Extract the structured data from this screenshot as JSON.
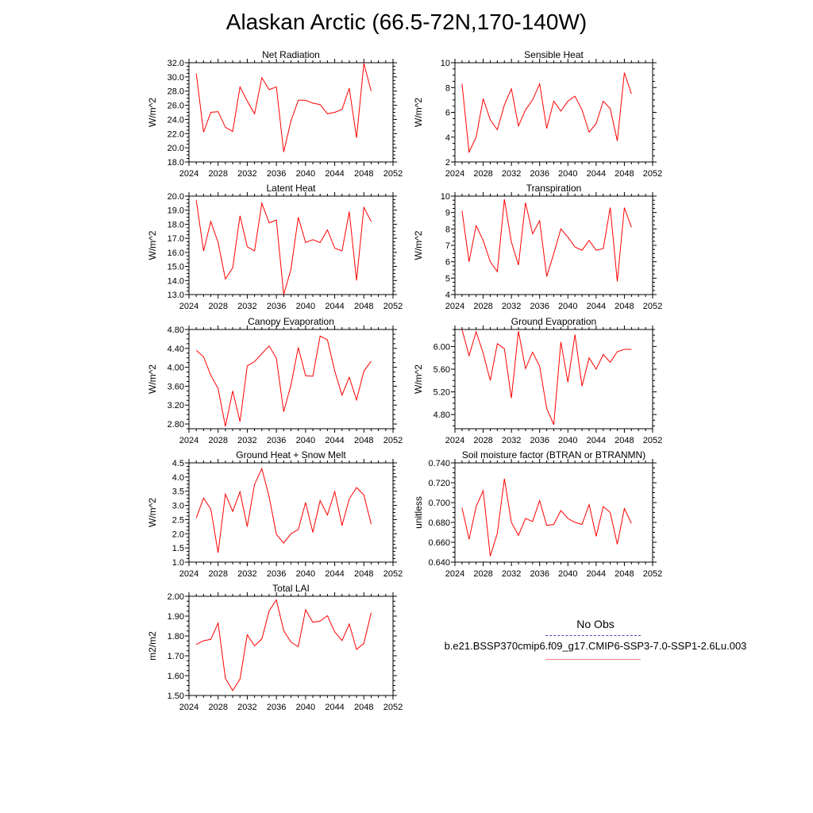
{
  "title": "Alaskan Arctic (66.5-72N,170-140W)",
  "legend": {
    "obs_label": "No Obs",
    "case_label": "b.e21.BSSP370cmip6.f09_g17.CMIP6-SSP3-7.0-SSP1-2.6Lu.003",
    "line_color": "#ff0000"
  },
  "chart_data": [
    {
      "type": "line",
      "title": "Net Radiation",
      "ylabel": "W/m^2",
      "xlim": [
        2024,
        2052
      ],
      "ylim": [
        18.0,
        32.0
      ],
      "xticks": [
        "2024",
        "2028",
        "2032",
        "2036",
        "2040",
        "2044",
        "2048",
        "2052"
      ],
      "yticks": [
        "18.0",
        "20.0",
        "22.0",
        "24.0",
        "26.0",
        "28.0",
        "30.0",
        "32.0"
      ],
      "x": [
        2025,
        2026,
        2027,
        2028,
        2029,
        2030,
        2031,
        2032,
        2033,
        2034,
        2035,
        2036,
        2037,
        2038,
        2039,
        2040,
        2041,
        2042,
        2043,
        2044,
        2045,
        2046,
        2047,
        2048,
        2049
      ],
      "values": [
        30.5,
        22.2,
        25.0,
        25.1,
        22.9,
        22.3,
        28.6,
        26.6,
        24.8,
        29.9,
        28.2,
        28.6,
        19.4,
        23.8,
        26.7,
        26.7,
        26.3,
        26.1,
        24.8,
        25.0,
        25.4,
        28.4,
        21.4,
        31.9,
        28.0
      ]
    },
    {
      "type": "line",
      "title": "Sensible Heat",
      "ylabel": "W/m^2",
      "xlim": [
        2024,
        2052
      ],
      "ylim": [
        2,
        10
      ],
      "xticks": [
        "2024",
        "2028",
        "2032",
        "2036",
        "2040",
        "2044",
        "2048",
        "2052"
      ],
      "yticks": [
        "2",
        "4",
        "6",
        "8",
        "10"
      ],
      "x": [
        2025,
        2026,
        2027,
        2028,
        2029,
        2030,
        2031,
        2032,
        2033,
        2034,
        2035,
        2036,
        2037,
        2038,
        2039,
        2040,
        2041,
        2042,
        2043,
        2044,
        2045,
        2046,
        2047,
        2048,
        2049
      ],
      "values": [
        8.3,
        2.8,
        4.0,
        7.1,
        5.4,
        4.6,
        6.6,
        7.9,
        4.9,
        6.2,
        7.0,
        8.3,
        4.7,
        6.9,
        6.1,
        6.9,
        7.3,
        6.2,
        4.4,
        5.1,
        6.9,
        6.3,
        3.7,
        9.2,
        7.5
      ]
    },
    {
      "type": "line",
      "title": "Latent Heat",
      "ylabel": "W/m^2",
      "xlim": [
        2024,
        2052
      ],
      "ylim": [
        13.0,
        20.0
      ],
      "xticks": [
        "2024",
        "2028",
        "2032",
        "2036",
        "2040",
        "2044",
        "2048",
        "2052"
      ],
      "yticks": [
        "13.0",
        "14.0",
        "15.0",
        "16.0",
        "17.0",
        "18.0",
        "19.0",
        "20.0"
      ],
      "x": [
        2025,
        2026,
        2027,
        2028,
        2029,
        2030,
        2031,
        2032,
        2033,
        2034,
        2035,
        2036,
        2037,
        2038,
        2039,
        2040,
        2041,
        2042,
        2043,
        2044,
        2045,
        2046,
        2047,
        2048,
        2049
      ],
      "values": [
        19.7,
        16.1,
        18.2,
        16.7,
        14.1,
        14.9,
        18.6,
        16.4,
        16.1,
        19.5,
        18.1,
        18.3,
        13.0,
        14.8,
        18.5,
        16.7,
        16.9,
        16.7,
        17.6,
        16.3,
        16.1,
        18.9,
        14.0,
        19.2,
        18.2
      ]
    },
    {
      "type": "line",
      "title": "Transpiration",
      "ylabel": "W/m^2",
      "xlim": [
        2024,
        2052
      ],
      "ylim": [
        4,
        10
      ],
      "xticks": [
        "2024",
        "2028",
        "2032",
        "2036",
        "2040",
        "2044",
        "2048",
        "2052"
      ],
      "yticks": [
        "4",
        "5",
        "6",
        "7",
        "8",
        "9",
        "10"
      ],
      "x": [
        2025,
        2026,
        2027,
        2028,
        2029,
        2030,
        2031,
        2032,
        2033,
        2034,
        2035,
        2036,
        2037,
        2038,
        2039,
        2040,
        2041,
        2042,
        2043,
        2044,
        2045,
        2046,
        2047,
        2048,
        2049
      ],
      "values": [
        9.1,
        6.0,
        8.2,
        7.3,
        6.0,
        5.4,
        9.8,
        7.2,
        5.8,
        9.6,
        7.7,
        8.5,
        5.1,
        6.5,
        8.0,
        7.5,
        6.9,
        6.7,
        7.3,
        6.7,
        6.8,
        9.3,
        4.8,
        9.3,
        8.1
      ]
    },
    {
      "type": "line",
      "title": "Canopy Evaporation",
      "ylabel": "W/m^2",
      "xlim": [
        2024,
        2052
      ],
      "ylim": [
        2.7,
        4.8
      ],
      "xticks": [
        "2024",
        "2028",
        "2032",
        "2036",
        "2040",
        "2044",
        "2048",
        "2052"
      ],
      "yticks": [
        "2.80",
        "3.20",
        "3.60",
        "4.00",
        "4.40",
        "4.80"
      ],
      "x": [
        2025,
        2026,
        2027,
        2028,
        2029,
        2030,
        2031,
        2032,
        2033,
        2034,
        2035,
        2036,
        2037,
        2038,
        2039,
        2040,
        2041,
        2042,
        2043,
        2044,
        2045,
        2046,
        2047,
        2048,
        2049
      ],
      "values": [
        4.36,
        4.22,
        3.83,
        3.55,
        2.75,
        3.5,
        2.85,
        4.03,
        4.12,
        4.29,
        4.45,
        4.19,
        3.06,
        3.63,
        4.42,
        3.82,
        3.81,
        4.66,
        4.58,
        3.92,
        3.41,
        3.79,
        3.31,
        3.92,
        4.13
      ]
    },
    {
      "type": "line",
      "title": "Ground Evaporation",
      "ylabel": "W/m^2",
      "xlim": [
        2024,
        2052
      ],
      "ylim": [
        4.55,
        6.3
      ],
      "xticks": [
        "2024",
        "2028",
        "2032",
        "2036",
        "2040",
        "2044",
        "2048",
        "2052"
      ],
      "yticks": [
        "4.80",
        "5.20",
        "5.60",
        "6.00"
      ],
      "x": [
        2025,
        2026,
        2027,
        2028,
        2029,
        2030,
        2031,
        2032,
        2033,
        2034,
        2035,
        2036,
        2037,
        2038,
        2039,
        2040,
        2041,
        2042,
        2043,
        2044,
        2045,
        2046,
        2047,
        2048,
        2049
      ],
      "values": [
        6.3,
        5.84,
        6.26,
        5.88,
        5.4,
        6.05,
        5.96,
        5.09,
        6.27,
        5.61,
        5.9,
        5.65,
        4.91,
        4.62,
        6.08,
        5.37,
        6.21,
        5.3,
        5.8,
        5.6,
        5.86,
        5.72,
        5.91,
        5.95,
        5.95
      ]
    },
    {
      "type": "line",
      "title": "Ground Heat + Snow Melt",
      "ylabel": "W/m^2",
      "xlim": [
        2024,
        2052
      ],
      "ylim": [
        1.0,
        4.5
      ],
      "xticks": [
        "2024",
        "2028",
        "2032",
        "2036",
        "2040",
        "2044",
        "2048",
        "2052"
      ],
      "yticks": [
        "1.0",
        "1.5",
        "2.0",
        "2.5",
        "3.0",
        "3.5",
        "4.0",
        "4.5"
      ],
      "x": [
        2025,
        2026,
        2027,
        2028,
        2029,
        2030,
        2031,
        2032,
        2033,
        2034,
        2035,
        2036,
        2037,
        2038,
        2039,
        2040,
        2041,
        2042,
        2043,
        2044,
        2045,
        2046,
        2047,
        2048,
        2049
      ],
      "values": [
        2.56,
        3.26,
        2.87,
        1.33,
        3.4,
        2.79,
        3.48,
        2.25,
        3.74,
        4.3,
        3.3,
        1.98,
        1.67,
        2.0,
        2.15,
        3.1,
        2.05,
        3.17,
        2.66,
        3.49,
        2.29,
        3.23,
        3.63,
        3.37,
        2.34
      ]
    },
    {
      "type": "line",
      "title": "Soil moisture factor (BTRAN or BTRANMN)",
      "ylabel": "unitless",
      "xlim": [
        2024,
        2052
      ],
      "ylim": [
        0.64,
        0.74
      ],
      "xticks": [
        "2024",
        "2028",
        "2032",
        "2036",
        "2040",
        "2044",
        "2048",
        "2052"
      ],
      "yticks": [
        "0.640",
        "0.660",
        "0.680",
        "0.700",
        "0.720",
        "0.740"
      ],
      "x": [
        2025,
        2026,
        2027,
        2028,
        2029,
        2030,
        2031,
        2032,
        2033,
        2034,
        2035,
        2036,
        2037,
        2038,
        2039,
        2040,
        2041,
        2042,
        2043,
        2044,
        2045,
        2046,
        2047,
        2048,
        2049
      ],
      "values": [
        0.695,
        0.663,
        0.696,
        0.712,
        0.646,
        0.669,
        0.724,
        0.68,
        0.667,
        0.684,
        0.681,
        0.702,
        0.677,
        0.678,
        0.692,
        0.684,
        0.68,
        0.678,
        0.698,
        0.666,
        0.696,
        0.69,
        0.658,
        0.694,
        0.679
      ]
    },
    {
      "type": "line",
      "title": "Total LAI",
      "ylabel": "m2/m2",
      "xlim": [
        2024,
        2052
      ],
      "ylim": [
        1.5,
        2.0
      ],
      "xticks": [
        "2024",
        "2028",
        "2032",
        "2036",
        "2040",
        "2044",
        "2048",
        "2052"
      ],
      "yticks": [
        "1.50",
        "1.60",
        "1.70",
        "1.80",
        "1.90",
        "2.00"
      ],
      "x": [
        2025,
        2026,
        2027,
        2028,
        2029,
        2030,
        2031,
        2032,
        2033,
        2034,
        2035,
        2036,
        2037,
        2038,
        2039,
        2040,
        2041,
        2042,
        2043,
        2044,
        2045,
        2046,
        2047,
        2048,
        2049
      ],
      "values": [
        1.757,
        1.776,
        1.783,
        1.865,
        1.586,
        1.525,
        1.583,
        1.806,
        1.75,
        1.785,
        1.926,
        1.982,
        1.827,
        1.769,
        1.746,
        1.932,
        1.869,
        1.875,
        1.902,
        1.821,
        1.777,
        1.86,
        1.732,
        1.763,
        1.917
      ]
    }
  ]
}
